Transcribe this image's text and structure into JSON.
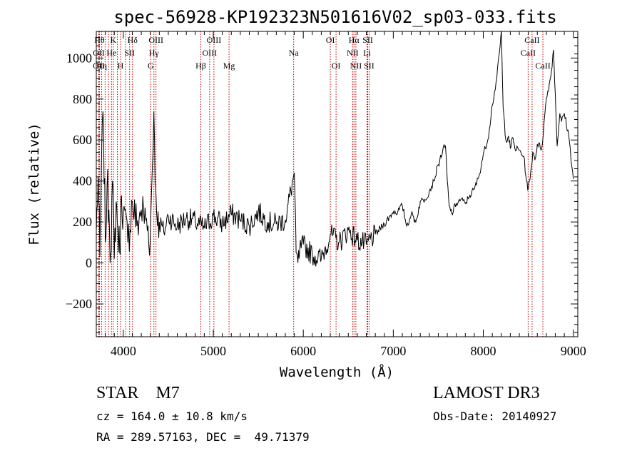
{
  "chart_data": {
    "type": "line",
    "title": "spec-56928-KP192323N501616V02_sp03-033.fits",
    "xlabel": "Wavelength (Å)",
    "ylabel": "Flux (relative)",
    "xlim": [
      3700,
      9050
    ],
    "ylim": [
      -360,
      1130
    ],
    "xticks": [
      4000,
      5000,
      6000,
      7000,
      8000,
      9000
    ],
    "yticks": [
      -200,
      0,
      200,
      400,
      600,
      800,
      1000
    ],
    "line_color": "#000000",
    "marker_color": "#cc0000",
    "series": [
      {
        "x": [
          3700,
          3720,
          3740,
          3760,
          3780,
          3800,
          3820,
          3840,
          3860,
          3880,
          3900,
          3920,
          3940,
          3960,
          3980,
          4000,
          4050,
          4100,
          4150,
          4200,
          4250,
          4300,
          4340,
          4360,
          4370,
          4380,
          4400,
          4450,
          4500,
          4600,
          4700,
          4800,
          4900,
          5000,
          5100,
          5200,
          5300,
          5400,
          5500,
          5600,
          5700,
          5800,
          5900,
          5920,
          5940,
          5960,
          6000,
          6100,
          6200,
          6300,
          6400,
          6500,
          6600,
          6700,
          6800,
          6900,
          7000,
          7050,
          7100,
          7150,
          7200,
          7250,
          7300,
          7350,
          7400,
          7450,
          7500,
          7550,
          7580,
          7600,
          7620,
          7650,
          7700,
          7750,
          7800,
          7850,
          7900,
          7950,
          8000,
          8050,
          8100,
          8150,
          8180,
          8200,
          8220,
          8250,
          8280,
          8300,
          8330,
          8350,
          8400,
          8450,
          8480,
          8500,
          8520,
          8550,
          8580,
          8600,
          8650,
          8700,
          8750,
          8780,
          8800,
          8820,
          8850,
          8870,
          8900,
          8950,
          9000
        ],
        "y": [
          150,
          420,
          30,
          560,
          680,
          100,
          380,
          260,
          40,
          400,
          20,
          300,
          160,
          50,
          330,
          250,
          100,
          300,
          180,
          260,
          210,
          120,
          740,
          370,
          250,
          180,
          200,
          150,
          230,
          180,
          220,
          200,
          170,
          230,
          190,
          240,
          210,
          180,
          250,
          200,
          190,
          210,
          440,
          50,
          0,
          60,
          90,
          40,
          20,
          140,
          100,
          160,
          110,
          90,
          140,
          190,
          250,
          250,
          280,
          180,
          240,
          200,
          300,
          310,
          350,
          400,
          480,
          550,
          570,
          400,
          280,
          240,
          290,
          310,
          290,
          330,
          360,
          420,
          530,
          600,
          770,
          900,
          1030,
          1130,
          760,
          600,
          620,
          560,
          610,
          560,
          550,
          520,
          400,
          360,
          410,
          540,
          510,
          580,
          560,
          800,
          910,
          1040,
          820,
          570,
          730,
          690,
          730,
          620,
          410
        ]
      }
    ],
    "lines": [
      {
        "x": 3735,
        "label": "Hθ",
        "row": 0
      },
      {
        "x": 3727,
        "label": "OII",
        "row": 1
      },
      {
        "x": 3727,
        "label": "OII",
        "row": 2
      },
      {
        "x": 3760,
        "label": "Hη",
        "row": 2
      },
      {
        "x": 3798,
        "label": "",
        "row": 0
      },
      {
        "x": 3835,
        "label": "",
        "row": 0
      },
      {
        "x": 3869,
        "label": "He",
        "row": 1
      },
      {
        "x": 3889,
        "label": "K",
        "row": 0
      },
      {
        "x": 3934,
        "label": "",
        "row": 0
      },
      {
        "x": 3969,
        "label": "H",
        "row": 2
      },
      {
        "x": 4026,
        "label": "",
        "row": 0
      },
      {
        "x": 4070,
        "label": "SII",
        "row": 1
      },
      {
        "x": 4102,
        "label": "Hδ",
        "row": 0
      },
      {
        "x": 4304,
        "label": "G",
        "row": 2
      },
      {
        "x": 4340,
        "label": "Hγ",
        "row": 1
      },
      {
        "x": 4363,
        "label": "OIII",
        "row": 0
      },
      {
        "x": 4861,
        "label": "Hβ",
        "row": 2
      },
      {
        "x": 4959,
        "label": "OIII",
        "row": 1
      },
      {
        "x": 5007,
        "label": "OIII",
        "row": 0
      },
      {
        "x": 5175,
        "label": "Mg",
        "row": 2
      },
      {
        "x": 5893,
        "label": "Na",
        "row": 1
      },
      {
        "x": 6300,
        "label": "OI",
        "row": 0
      },
      {
        "x": 6364,
        "label": "OI",
        "row": 2
      },
      {
        "x": 6548,
        "label": "NII",
        "row": 1
      },
      {
        "x": 6563,
        "label": "Hα",
        "row": 0
      },
      {
        "x": 6584,
        "label": "NII",
        "row": 2
      },
      {
        "x": 6708,
        "label": "Li",
        "row": 1
      },
      {
        "x": 6716,
        "label": "SII",
        "row": 0
      },
      {
        "x": 6731,
        "label": "SII",
        "row": 2
      },
      {
        "x": 8498,
        "label": "CaII",
        "row": 1
      },
      {
        "x": 8542,
        "label": "CaII",
        "row": 0
      },
      {
        "x": 8662,
        "label": "CaII",
        "row": 2
      }
    ]
  },
  "info": {
    "class": "STAR",
    "subclass": "M7",
    "survey": "LAMOST DR3",
    "cz": "cz = 164.0 ± 10.8 km/s",
    "obs_date": "Obs-Date: 20140927",
    "coords": "RA = 289.57163, DEC =  49.71379"
  }
}
